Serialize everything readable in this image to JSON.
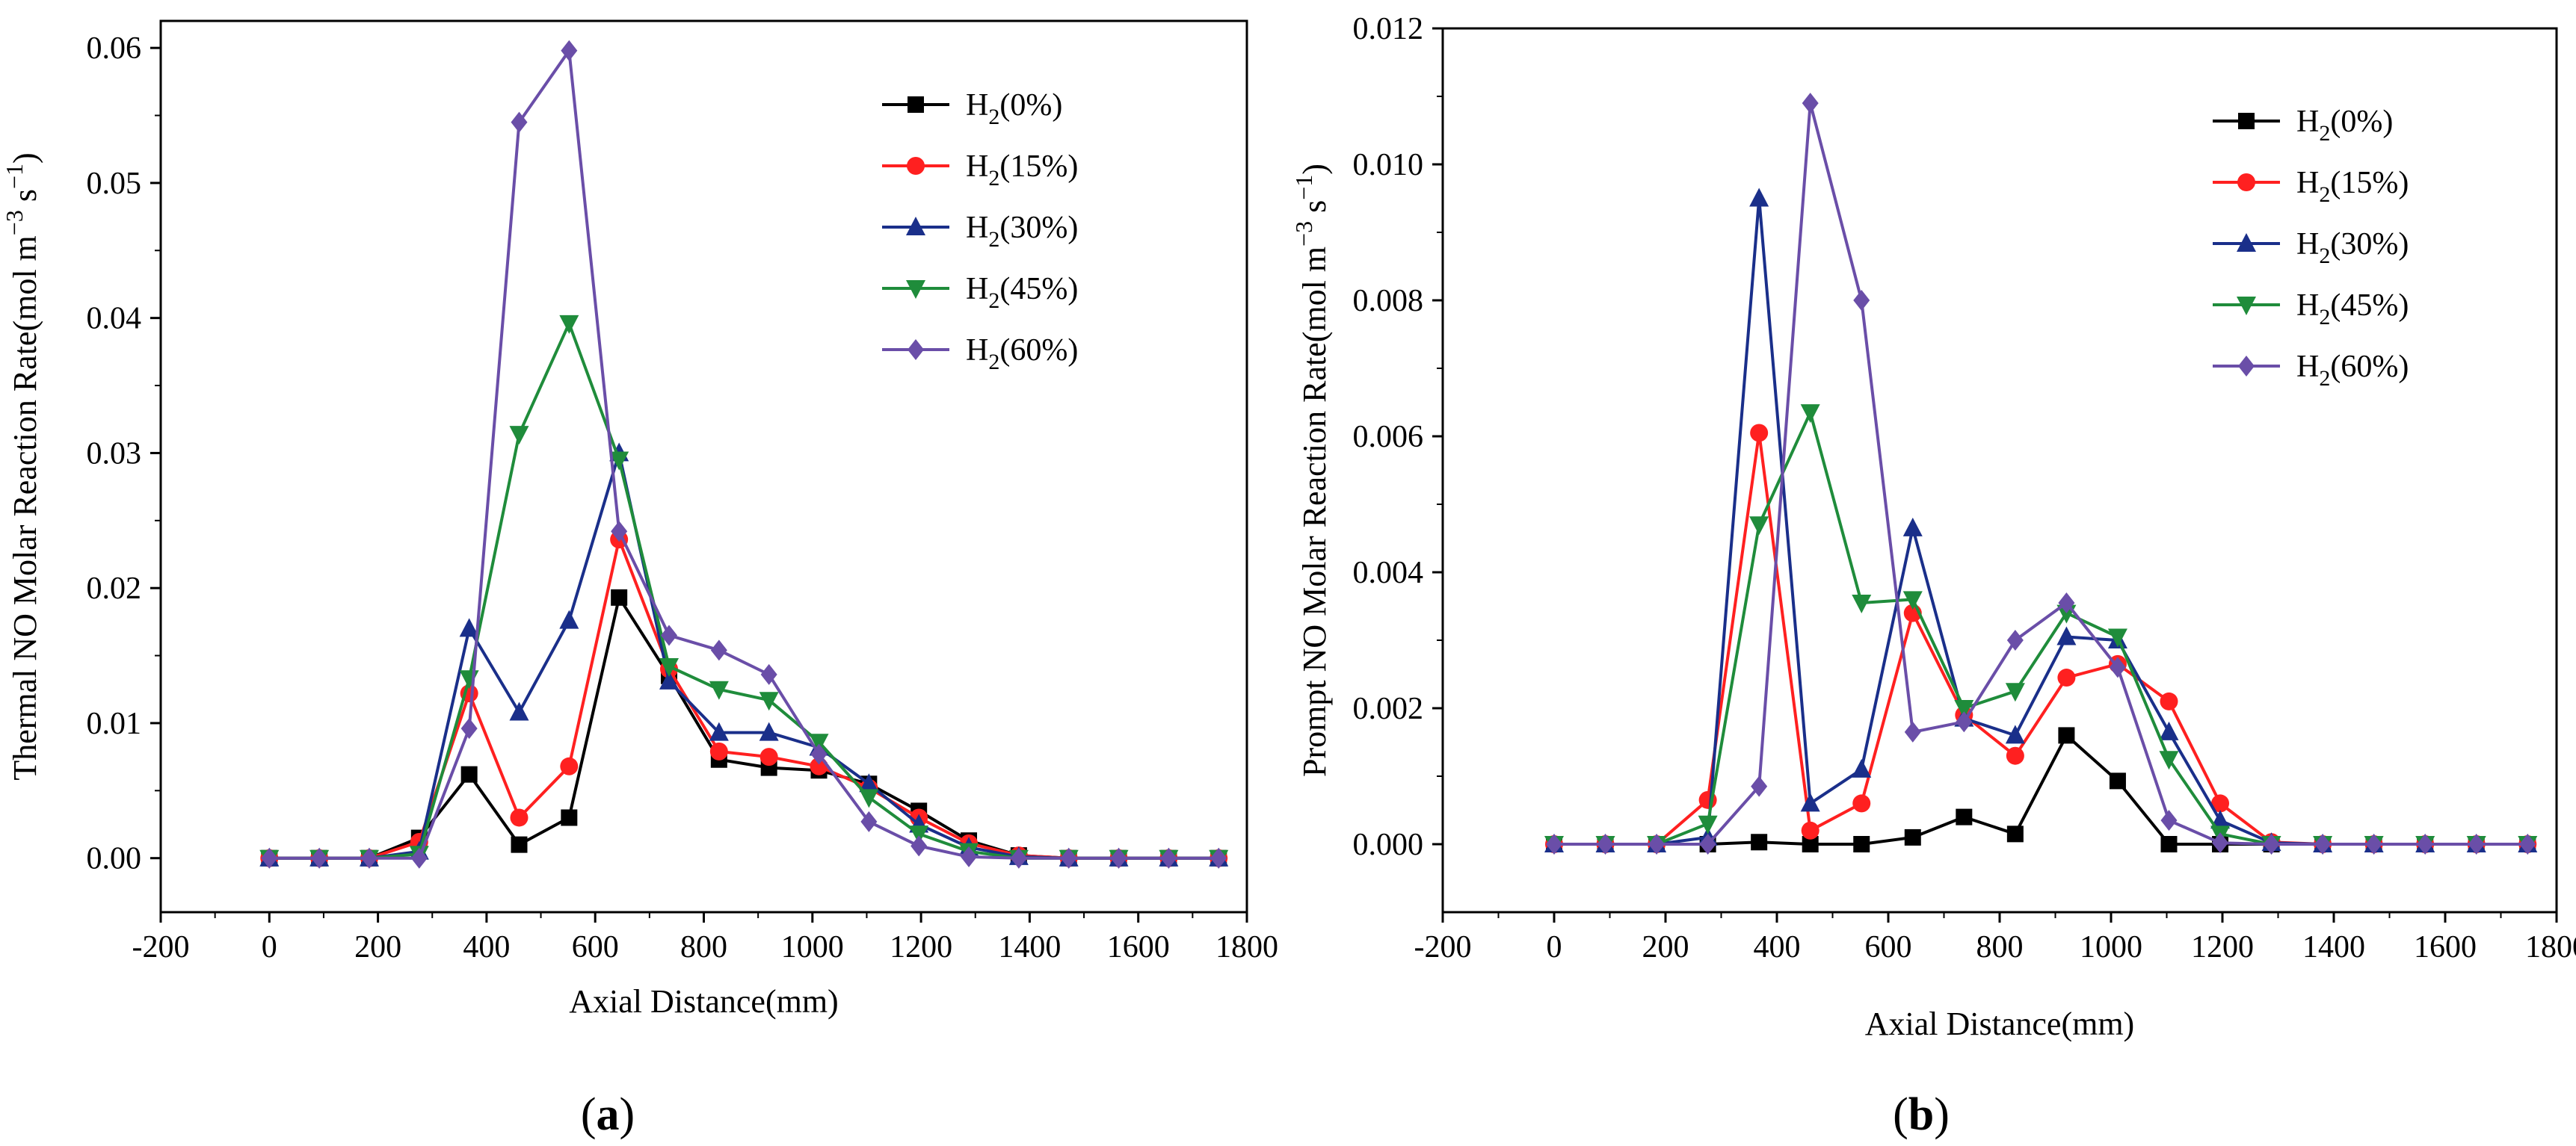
{
  "figure": {
    "panel_a_label": "(a)",
    "panel_b_label": "(b)"
  },
  "chart_data": [
    {
      "type": "line",
      "panel": "a",
      "xlabel": "Axial Distance(mm)",
      "ylabel": "Thermal NO Molar Reaction Rate(mol m−3 s−1)",
      "xlim": [
        -200,
        1800
      ],
      "ylim": [
        -0.004,
        0.062
      ],
      "xticks": [
        -200,
        0,
        200,
        400,
        600,
        800,
        1000,
        1200,
        1400,
        1600,
        1800
      ],
      "yticks": [
        0.0,
        0.01,
        0.02,
        0.03,
        0.04,
        0.05,
        0.06
      ],
      "ytick_labels": [
        "0.00",
        "0.01",
        "0.02",
        "0.03",
        "0.04",
        "0.05",
        "0.06"
      ],
      "legend_position": "top-right",
      "x": [
        0,
        92,
        184,
        276,
        368,
        460,
        552,
        644,
        736,
        828,
        920,
        1012,
        1104,
        1196,
        1288,
        1380,
        1472,
        1564,
        1656,
        1748
      ],
      "series": [
        {
          "name": "H2(0%)",
          "legend": {
            "base": "H",
            "sub": "2",
            "rest": "(0%)"
          },
          "color": "#000000",
          "marker": "square",
          "values": [
            0,
            0,
            0,
            0.0015,
            0.0062,
            0.001,
            0.003,
            0.0193,
            0.0135,
            0.0073,
            0.0067,
            0.0065,
            0.0055,
            0.0035,
            0.0013,
            0.0002,
            0,
            0,
            0,
            0
          ]
        },
        {
          "name": "H2(15%)",
          "legend": {
            "base": "H",
            "sub": "2",
            "rest": "(15%)"
          },
          "color": "#ff2020",
          "marker": "circle",
          "values": [
            0,
            0,
            0,
            0.0012,
            0.0122,
            0.003,
            0.0068,
            0.0236,
            0.014,
            0.0079,
            0.0075,
            0.0068,
            0.0052,
            0.003,
            0.0011,
            0.0002,
            0,
            0,
            0,
            0
          ]
        },
        {
          "name": "H2(30%)",
          "legend": {
            "base": "H",
            "sub": "2",
            "rest": "(30%)"
          },
          "color": "#1a2f8a",
          "marker": "triangle-up",
          "values": [
            0,
            0,
            0,
            0.0005,
            0.017,
            0.0108,
            0.0176,
            0.03,
            0.0131,
            0.0093,
            0.0093,
            0.0082,
            0.0055,
            0.0025,
            0.0008,
            0.0001,
            0,
            0,
            0,
            0
          ]
        },
        {
          "name": "H2(45%)",
          "legend": {
            "base": "H",
            "sub": "2",
            "rest": "(45%)"
          },
          "color": "#1f8c3b",
          "marker": "triangle-down",
          "values": [
            0,
            0,
            0,
            0.0003,
            0.0133,
            0.0314,
            0.0396,
            0.0295,
            0.0142,
            0.0125,
            0.0117,
            0.0086,
            0.0045,
            0.0018,
            0.0005,
            0,
            0,
            0,
            0,
            0
          ]
        },
        {
          "name": "H2(60%)",
          "legend": {
            "base": "H",
            "sub": "2",
            "rest": "(60%)"
          },
          "color": "#6a4ea8",
          "marker": "diamond",
          "values": [
            0,
            0,
            0,
            0,
            0.0096,
            0.0545,
            0.0598,
            0.0242,
            0.0165,
            0.0154,
            0.0136,
            0.0077,
            0.0027,
            0.0009,
            0.0001,
            0,
            0,
            0,
            0,
            0
          ]
        }
      ]
    },
    {
      "type": "line",
      "panel": "b",
      "xlabel": "Axial Distance(mm)",
      "ylabel": "Prompt NO Molar Reaction Rate(mol m−3 s−1)",
      "xlim": [
        -200,
        1800
      ],
      "ylim": [
        -0.001,
        0.012
      ],
      "xticks": [
        -200,
        0,
        200,
        400,
        600,
        800,
        1000,
        1200,
        1400,
        1600,
        1800
      ],
      "yticks": [
        0,
        0.002,
        0.004,
        0.006,
        0.008,
        0.01,
        0.012
      ],
      "ytick_labels": [
        "0.000",
        "0.002",
        "0.004",
        "0.006",
        "0.008",
        "0.010",
        "0.012"
      ],
      "legend_position": "top-right",
      "x": [
        0,
        92,
        184,
        276,
        368,
        460,
        552,
        644,
        736,
        828,
        920,
        1012,
        1104,
        1196,
        1288,
        1380,
        1472,
        1564,
        1656,
        1748
      ],
      "series": [
        {
          "name": "H2(0%)",
          "legend": {
            "base": "H",
            "sub": "2",
            "rest": "(0%)"
          },
          "color": "#000000",
          "marker": "square",
          "values": [
            0,
            0,
            0,
            0,
            3e-05,
            0,
            0,
            0.0001,
            0.0004,
            0.00015,
            0.0016,
            0.00093,
            0,
            0,
            0,
            0,
            0,
            0,
            0,
            0
          ]
        },
        {
          "name": "H2(15%)",
          "legend": {
            "base": "H",
            "sub": "2",
            "rest": "(15%)"
          },
          "color": "#ff2020",
          "marker": "circle",
          "values": [
            0,
            0,
            0,
            0.00065,
            0.00605,
            0.0002,
            0.0006,
            0.0034,
            0.0019,
            0.0013,
            0.00245,
            0.00265,
            0.0021,
            0.0006,
            3e-05,
            0,
            0,
            0,
            0,
            0
          ]
        },
        {
          "name": "H2(30%)",
          "legend": {
            "base": "H",
            "sub": "2",
            "rest": "(30%)"
          },
          "color": "#1a2f8a",
          "marker": "triangle-up",
          "values": [
            0,
            0,
            0,
            0.0001,
            0.0095,
            0.0006,
            0.0011,
            0.00465,
            0.00185,
            0.0016,
            0.00305,
            0.003,
            0.00165,
            0.00035,
            2e-05,
            0,
            0,
            0,
            0,
            0
          ]
        },
        {
          "name": "H2(45%)",
          "legend": {
            "base": "H",
            "sub": "2",
            "rest": "(45%)"
          },
          "color": "#1f8c3b",
          "marker": "triangle-down",
          "values": [
            0,
            0,
            0,
            0.0003,
            0.0047,
            0.00635,
            0.00355,
            0.0036,
            0.002,
            0.00225,
            0.0034,
            0.00305,
            0.00125,
            0.00015,
            0,
            0,
            0,
            0,
            0,
            0
          ]
        },
        {
          "name": "H2(60%)",
          "legend": {
            "base": "H",
            "sub": "2",
            "rest": "(60%)"
          },
          "color": "#6a4ea8",
          "marker": "diamond",
          "values": [
            0,
            0,
            0,
            0,
            0.00085,
            0.0109,
            0.008,
            0.00165,
            0.0018,
            0.003,
            0.00355,
            0.0026,
            0.00035,
            2e-05,
            0,
            0,
            0,
            0,
            0,
            0
          ]
        }
      ]
    }
  ]
}
